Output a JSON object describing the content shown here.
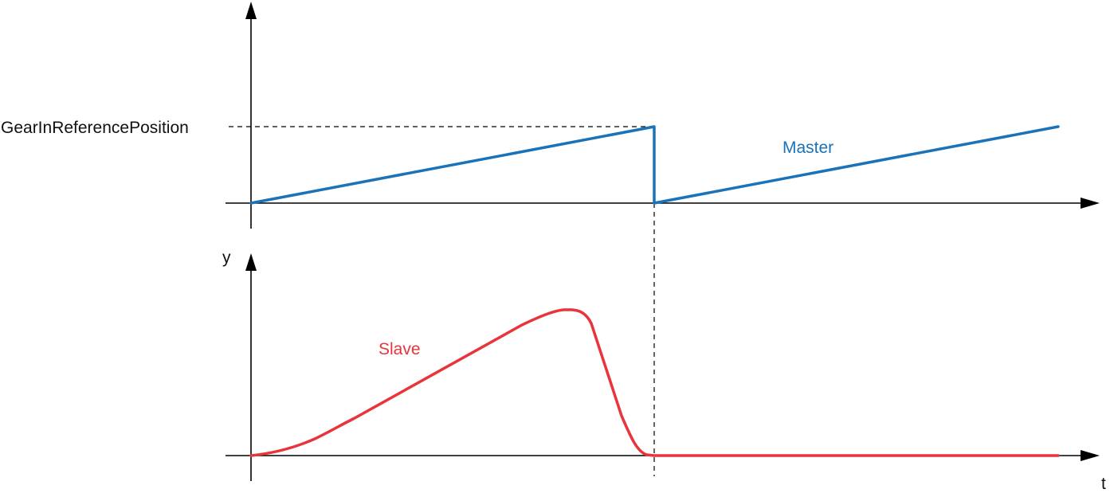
{
  "labels": {
    "reference_position": "GearInReferencePosition",
    "master": "Master",
    "slave": "Slave",
    "y_axis": "y",
    "t_axis": "t"
  },
  "colors": {
    "master": "#1a72b8",
    "slave": "#e8343a",
    "axes": "#000000"
  },
  "description_series": {
    "master": "sawtooth: ramps up to GearInReferencePosition, drops to zero, ramps up again",
    "slave": "rises from zero, peaks, returns to zero at the master reset, then stays at zero"
  }
}
